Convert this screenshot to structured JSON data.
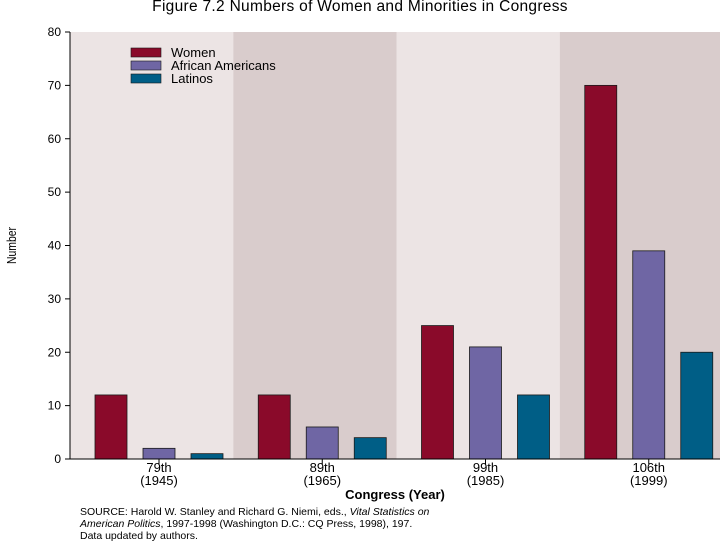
{
  "figure_title": "Figure 7.2  Numbers of Women and Minorities in Congress",
  "source": {
    "line1_prefix": "SOURCE:  Harold W. Stanley and Richard G. Niemi, eds., ",
    "line1_italic": "Vital Statistics on",
    "line2_italic": "American Politics",
    "line2_rest": ", 1997-1998 (Washington D.C.: CQ Press, 1998), 197.",
    "line3": "Data updated by authors."
  },
  "chart_data": {
    "type": "bar",
    "title": "Figure 7.2  Numbers of Women and Minorities in Congress",
    "xlabel": "Congress (Year)",
    "ylabel": "Number",
    "ylim": [
      0,
      80
    ],
    "yticks": [
      0,
      10,
      20,
      30,
      40,
      50,
      60,
      70,
      80
    ],
    "categories": [
      {
        "line1": "79th",
        "line2": "(1945)"
      },
      {
        "line1": "89th",
        "line2": "(1965)"
      },
      {
        "line1": "99th",
        "line2": "(1985)"
      },
      {
        "line1": "106th",
        "line2": "(1999)"
      }
    ],
    "series": [
      {
        "name": "Women",
        "color": "#8a0a2a",
        "values": [
          12,
          12,
          25,
          70
        ]
      },
      {
        "name": "African Americans",
        "color": "#6f66a4",
        "values": [
          2,
          6,
          21,
          39
        ]
      },
      {
        "name": "Latinos",
        "color": "#005e86",
        "values": [
          1,
          4,
          12,
          20
        ]
      }
    ],
    "panel_colors": [
      "#ece4e4",
      "#d9cccc"
    ],
    "legend_position": "top-left",
    "grid": false
  }
}
